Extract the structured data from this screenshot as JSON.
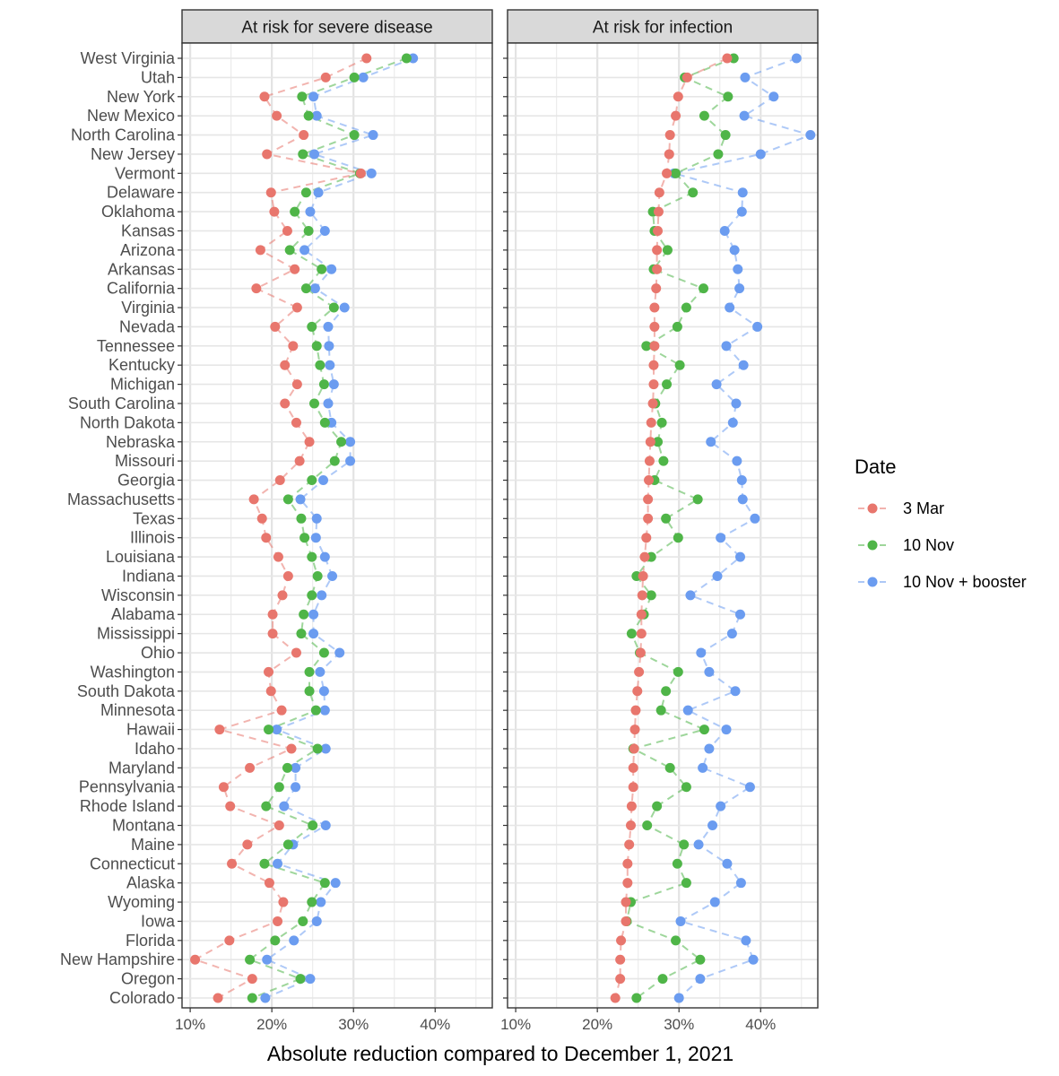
{
  "chart_data": {
    "type": "scatter",
    "xlabel": "Absolute reduction compared to December 1, 2021",
    "x_ticks": [
      "10%",
      "20%",
      "30%",
      "40%"
    ],
    "x_tick_values": [
      10,
      20,
      30,
      40
    ],
    "xlim": [
      9,
      47
    ],
    "legend": {
      "title": "Date",
      "placement": "right",
      "entries": [
        "3 Mar",
        "10 Nov",
        "10 Nov + booster"
      ]
    },
    "colors": {
      "3 Mar": "#e8766d",
      "10 Nov": "#4fb548",
      "10 Nov + booster": "#6b9cf0"
    },
    "states": [
      "West Virginia",
      "Utah",
      "New York",
      "New Mexico",
      "North Carolina",
      "New Jersey",
      "Vermont",
      "Delaware",
      "Oklahoma",
      "Kansas",
      "Arizona",
      "Arkansas",
      "California",
      "Virginia",
      "Nevada",
      "Tennessee",
      "Kentucky",
      "Michigan",
      "South Carolina",
      "North Dakota",
      "Nebraska",
      "Missouri",
      "Georgia",
      "Massachusetts",
      "Texas",
      "Illinois",
      "Louisiana",
      "Indiana",
      "Wisconsin",
      "Alabama",
      "Mississippi",
      "Ohio",
      "Washington",
      "South Dakota",
      "Minnesota",
      "Hawaii",
      "Idaho",
      "Maryland",
      "Pennsylvania",
      "Rhode Island",
      "Montana",
      "Maine",
      "Connecticut",
      "Alaska",
      "Wyoming",
      "Iowa",
      "Florida",
      "New Hampshire",
      "Oregon",
      "Colorado"
    ],
    "panels": [
      {
        "title": "At risk for severe disease",
        "series": [
          {
            "name": "3 Mar",
            "values": [
              31.6,
              26.6,
              19.1,
              20.6,
              23.9,
              19.4,
              30.9,
              19.9,
              20.3,
              21.9,
              18.6,
              22.8,
              18.1,
              23.1,
              20.4,
              22.6,
              21.6,
              23.1,
              21.6,
              23.0,
              24.6,
              23.4,
              21.0,
              17.8,
              18.8,
              19.3,
              20.8,
              22.0,
              21.3,
              20.1,
              20.1,
              23.0,
              19.6,
              19.9,
              21.2,
              13.6,
              22.4,
              17.3,
              14.1,
              14.9,
              20.9,
              17.0,
              15.1,
              19.7,
              21.4,
              20.7,
              14.8,
              10.6,
              17.6,
              13.4
            ]
          },
          {
            "name": "10 Nov",
            "values": [
              36.5,
              30.1,
              23.7,
              24.5,
              30.1,
              23.8,
              30.8,
              24.2,
              22.8,
              24.5,
              22.2,
              26.1,
              24.2,
              27.6,
              24.9,
              25.5,
              25.9,
              26.4,
              25.2,
              26.5,
              28.5,
              27.7,
              24.9,
              22.0,
              23.6,
              24.0,
              24.9,
              25.6,
              24.9,
              23.9,
              23.6,
              26.4,
              24.6,
              24.6,
              25.4,
              19.6,
              25.6,
              21.9,
              20.9,
              19.3,
              25.0,
              22.0,
              19.1,
              26.5,
              24.9,
              23.8,
              20.4,
              17.3,
              23.5,
              17.6
            ]
          },
          {
            "name": "10 Nov + booster",
            "values": [
              37.3,
              31.2,
              25.1,
              25.5,
              32.4,
              25.2,
              32.2,
              25.7,
              24.7,
              26.5,
              24.0,
              27.3,
              25.3,
              28.9,
              26.9,
              27.0,
              27.1,
              27.6,
              26.9,
              27.3,
              29.6,
              29.6,
              26.3,
              23.5,
              25.5,
              25.4,
              26.5,
              27.4,
              26.1,
              25.1,
              25.1,
              28.3,
              25.9,
              26.4,
              26.5,
              20.6,
              26.6,
              22.9,
              22.9,
              21.5,
              26.6,
              22.6,
              20.7,
              27.8,
              26.0,
              25.5,
              22.7,
              19.4,
              24.7,
              19.2
            ]
          }
        ]
      },
      {
        "title": "At risk for infection",
        "series": [
          {
            "name": "3 Mar",
            "values": [
              35.9,
              31.0,
              29.9,
              29.6,
              28.9,
              28.8,
              28.5,
              27.6,
              27.5,
              27.4,
              27.3,
              27.3,
              27.2,
              27.0,
              27.0,
              27.0,
              26.9,
              26.9,
              26.8,
              26.6,
              26.5,
              26.4,
              26.3,
              26.2,
              26.2,
              26.0,
              25.8,
              25.6,
              25.5,
              25.4,
              25.4,
              25.3,
              25.1,
              24.9,
              24.7,
              24.6,
              24.5,
              24.4,
              24.4,
              24.2,
              24.1,
              23.9,
              23.7,
              23.7,
              23.5,
              23.5,
              22.9,
              22.8,
              22.8,
              22.2
            ]
          },
          {
            "name": "10 Nov",
            "values": [
              36.7,
              30.7,
              36.0,
              33.1,
              35.7,
              34.8,
              29.6,
              31.7,
              26.8,
              27.0,
              28.6,
              26.9,
              33.0,
              30.9,
              29.8,
              26.0,
              30.1,
              28.5,
              27.1,
              27.9,
              27.4,
              28.1,
              27.0,
              32.3,
              28.4,
              29.9,
              26.6,
              24.8,
              26.6,
              25.7,
              24.2,
              25.2,
              29.9,
              28.4,
              27.8,
              33.1,
              24.4,
              28.9,
              30.9,
              27.3,
              26.1,
              30.6,
              29.8,
              30.9,
              24.1,
              23.6,
              29.6,
              32.6,
              28.0,
              24.8
            ]
          },
          {
            "name": "10 Nov + booster",
            "values": [
              44.4,
              38.1,
              41.6,
              38.0,
              46.1,
              40.0,
              29.4,
              37.8,
              37.7,
              35.6,
              36.8,
              37.2,
              37.4,
              36.2,
              39.6,
              35.8,
              37.9,
              34.6,
              37.0,
              36.6,
              33.9,
              37.1,
              37.7,
              37.8,
              39.3,
              35.1,
              37.5,
              34.7,
              31.4,
              37.5,
              36.5,
              32.7,
              33.7,
              36.9,
              31.1,
              35.8,
              33.7,
              32.9,
              38.7,
              35.1,
              34.1,
              32.4,
              35.9,
              37.6,
              34.4,
              30.2,
              38.2,
              39.1,
              32.6,
              30.0
            ]
          }
        ]
      }
    ]
  }
}
